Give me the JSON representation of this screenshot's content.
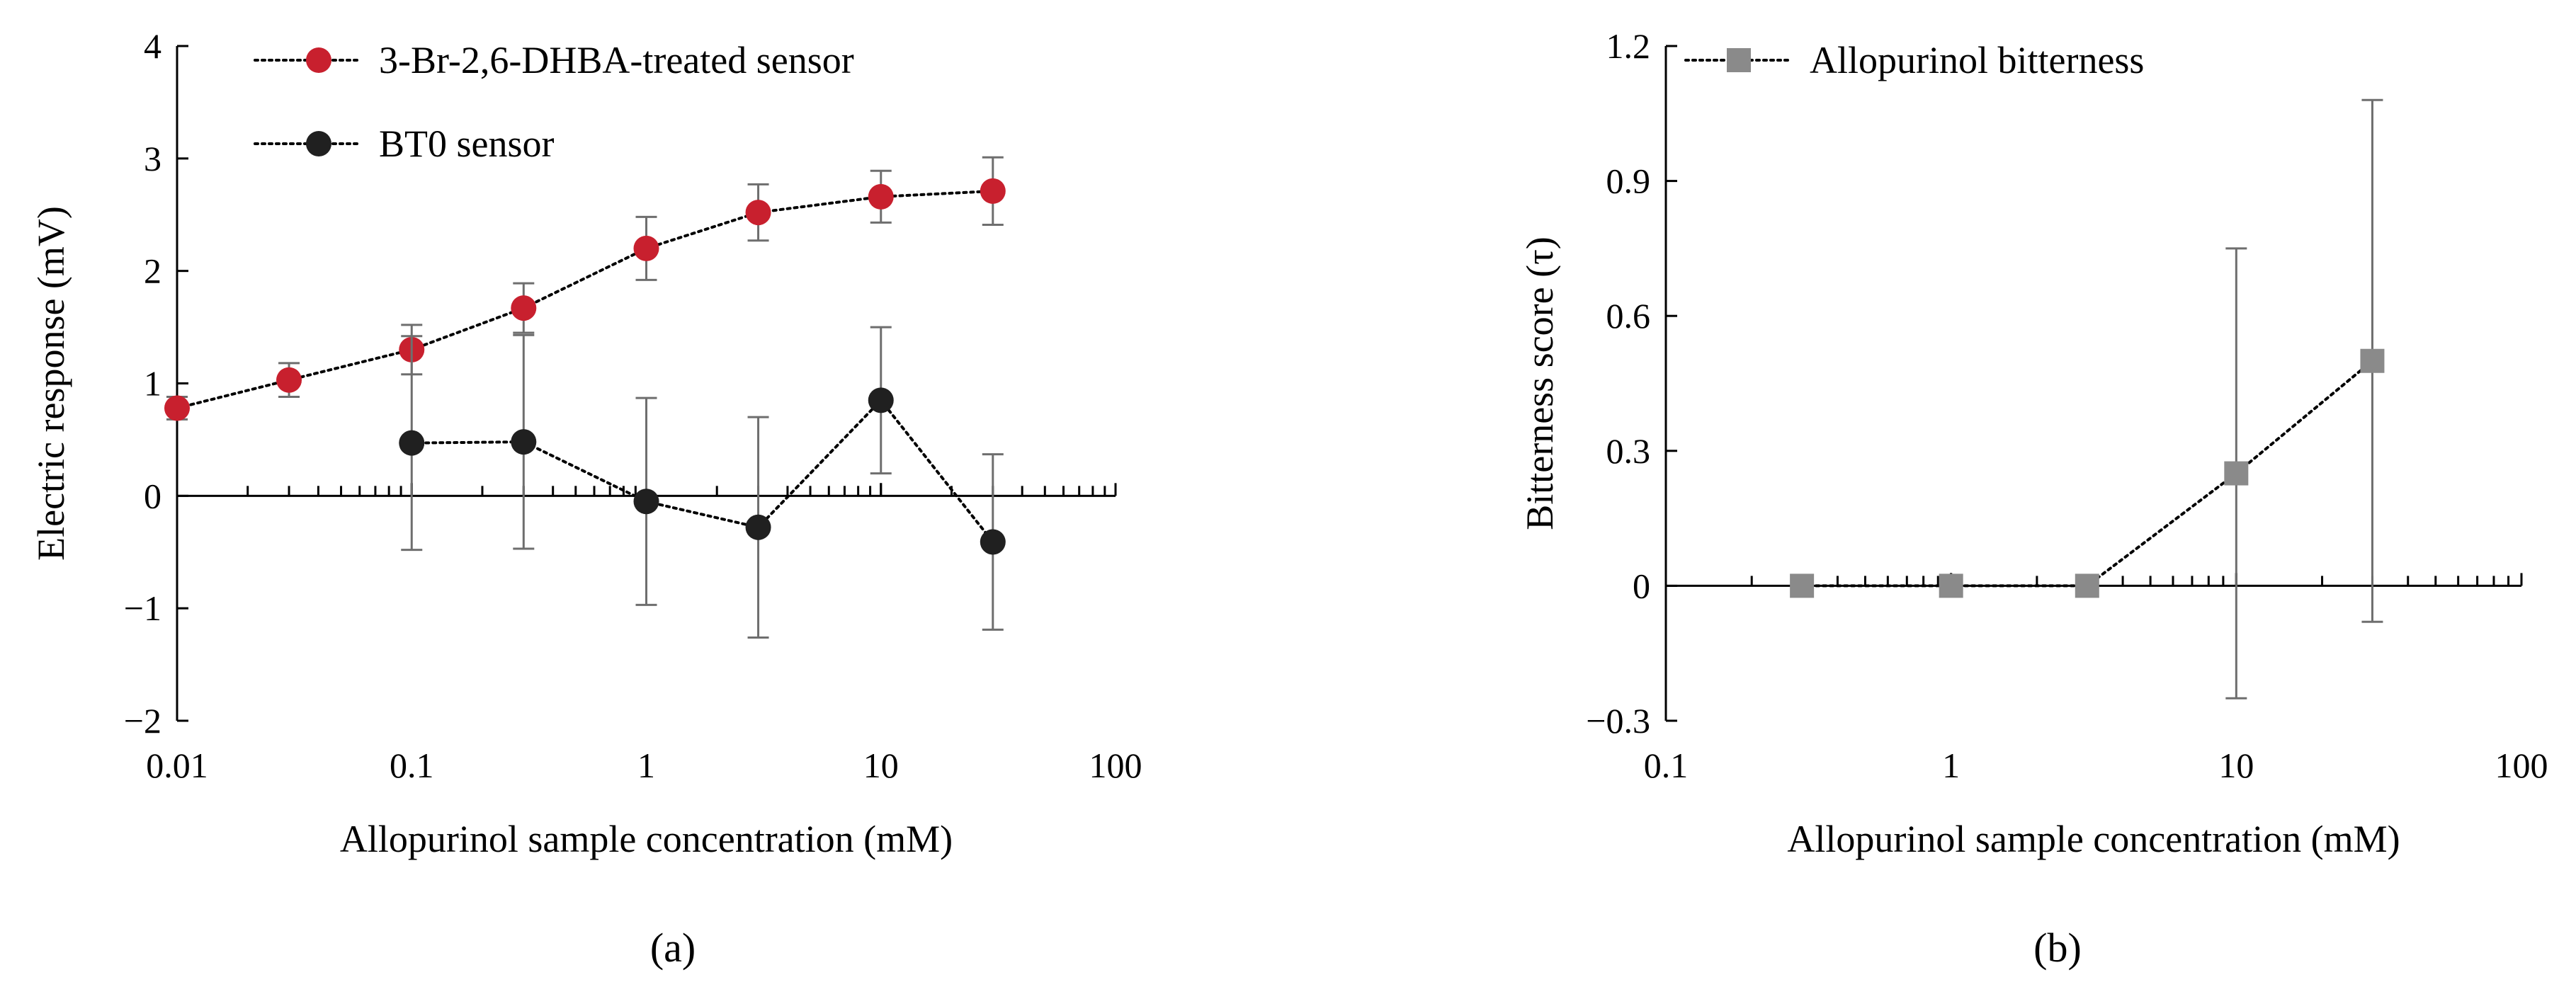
{
  "chart_data": [
    {
      "id": "a",
      "type": "line",
      "panel_label": "(a)",
      "x_scale": "log",
      "xlabel": "Allopurinol sample concentration (mM)",
      "ylabel": "Electric response (mV)",
      "xlim": [
        0.01,
        100
      ],
      "ylim": [
        -2,
        4
      ],
      "x_tick_labels": [
        "0.01",
        "0.1",
        "1",
        "10",
        "100"
      ],
      "y_tick_labels": [
        "−2",
        "−1",
        "0",
        "1",
        "2",
        "3",
        "4"
      ],
      "x_ticks": [
        0.01,
        0.1,
        1,
        10,
        100
      ],
      "y_ticks": [
        -2,
        -1,
        0,
        1,
        2,
        3,
        4
      ],
      "legend_position": "top-left",
      "series": [
        {
          "name": "3-Br-2,6-DHBA-treated sensor",
          "color": "#c8202e",
          "marker": "circle",
          "line_style": "dotted",
          "x": [
            0.01,
            0.03,
            0.1,
            0.3,
            1,
            3,
            10,
            30
          ],
          "y": [
            0.78,
            1.03,
            1.3,
            1.67,
            2.2,
            2.52,
            2.66,
            2.71
          ],
          "error": [
            0.1,
            0.15,
            0.22,
            0.22,
            0.28,
            0.25,
            0.23,
            0.3
          ]
        },
        {
          "name": "BT0 sensor",
          "color": "#202020",
          "marker": "circle",
          "line_style": "dotted",
          "x": [
            0.1,
            0.3,
            1,
            3,
            10,
            30
          ],
          "y": [
            0.47,
            0.48,
            -0.05,
            -0.28,
            0.85,
            -0.41
          ],
          "error": [
            0.95,
            0.95,
            0.92,
            0.98,
            0.65,
            0.78
          ]
        }
      ]
    },
    {
      "id": "b",
      "type": "line",
      "panel_label": "(b)",
      "x_scale": "log",
      "xlabel": "Allopurinol sample concentration (mM)",
      "ylabel": "Bitterness score (τ)",
      "xlim": [
        0.1,
        100
      ],
      "ylim": [
        -0.3,
        1.2
      ],
      "x_tick_labels": [
        "0.1",
        "1",
        "10",
        "100"
      ],
      "y_tick_labels": [
        "−0.3",
        "0",
        "0.3",
        "0.6",
        "0.9",
        "1.2"
      ],
      "x_ticks": [
        0.1,
        1,
        10,
        100
      ],
      "y_ticks": [
        -0.3,
        0,
        0.3,
        0.6,
        0.9,
        1.2
      ],
      "legend_position": "top-left",
      "series": [
        {
          "name": "Allopurinol bitterness",
          "color": "#8a8a8a",
          "marker": "square",
          "line_style": "dotted",
          "x": [
            0.3,
            1,
            3,
            10,
            30
          ],
          "y": [
            0,
            0,
            0,
            0.25,
            0.5
          ],
          "error": [
            0,
            0,
            0,
            0.5,
            0.58
          ]
        }
      ]
    }
  ]
}
